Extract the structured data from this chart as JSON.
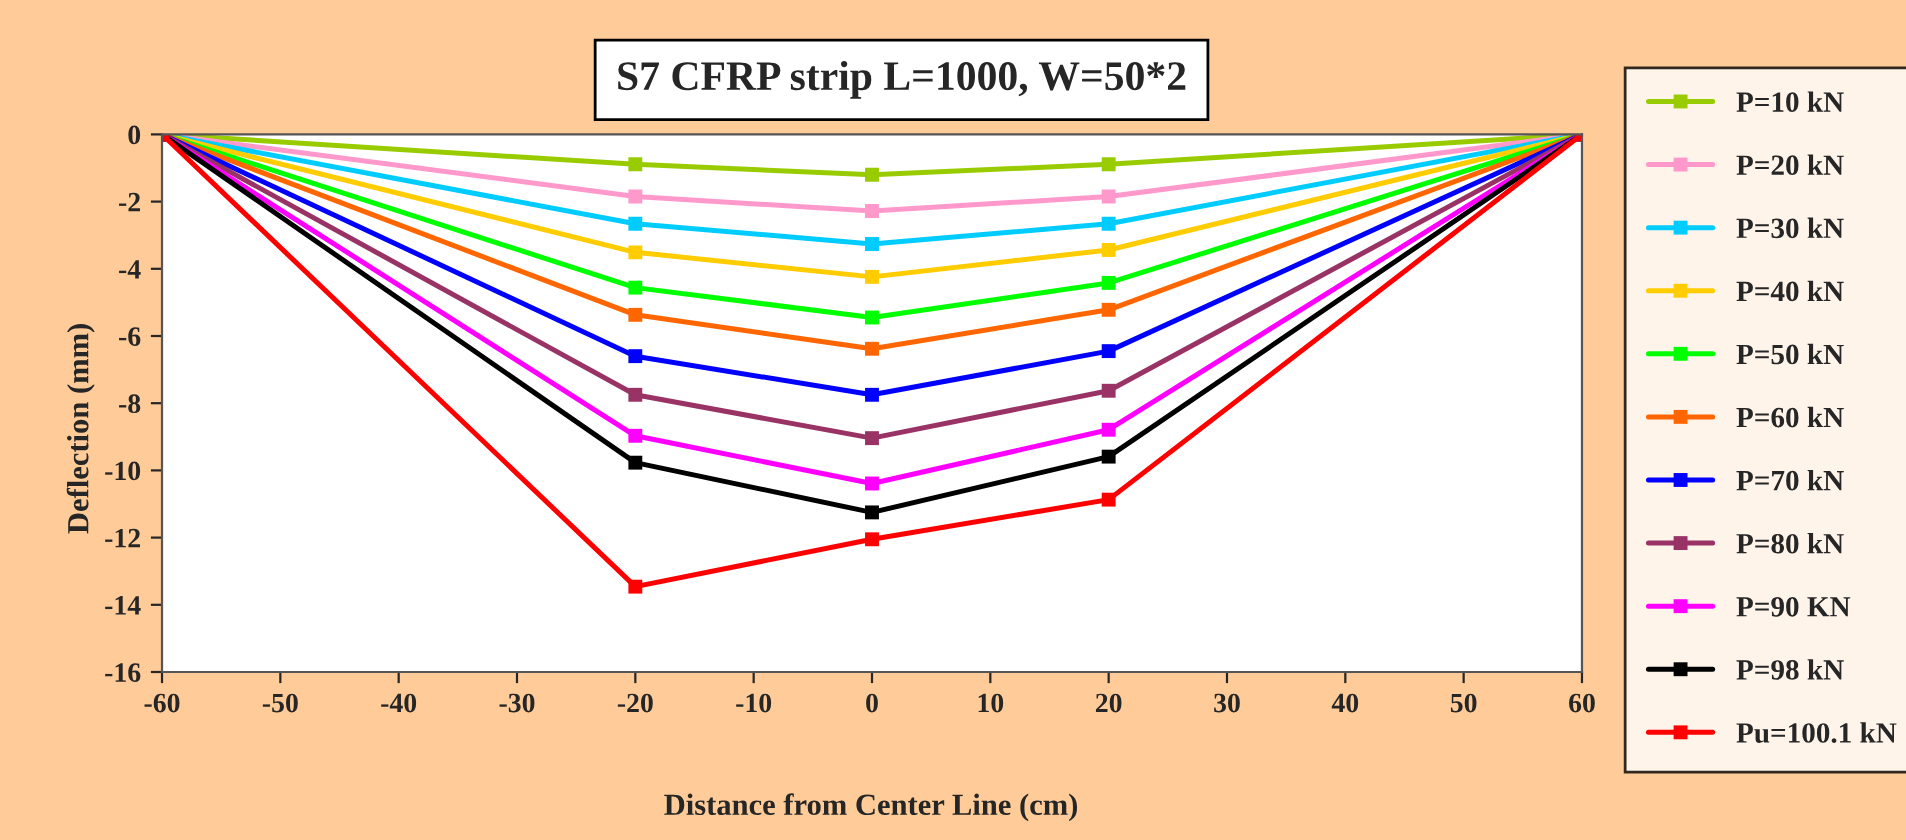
{
  "chart_data": {
    "type": "line",
    "title": "S7 CFRP strip L=1000, W=50*2",
    "xlabel": "Distance from Center Line (cm)",
    "ylabel": "Deflection (mm)",
    "x": [
      -60,
      -20,
      0,
      20,
      60
    ],
    "series": [
      {
        "name": "P=10 kN",
        "color": "#99cc00",
        "values": [
          0,
          -0.89,
          -1.2,
          -0.89,
          0
        ]
      },
      {
        "name": "P=20 kN",
        "color": "#ff99cc",
        "values": [
          0,
          -1.85,
          -2.28,
          -1.85,
          0
        ]
      },
      {
        "name": "P=30 kN",
        "color": "#00ccff",
        "values": [
          0,
          -2.66,
          -3.26,
          -2.66,
          0
        ]
      },
      {
        "name": "P=40 kN",
        "color": "#ffcc00",
        "values": [
          0,
          -3.51,
          -4.24,
          -3.44,
          0
        ]
      },
      {
        "name": "P=50 kN",
        "color": "#00ff00",
        "values": [
          0,
          -4.56,
          -5.45,
          -4.42,
          0
        ]
      },
      {
        "name": "P=60 kN",
        "color": "#ff6600",
        "values": [
          0,
          -5.37,
          -6.38,
          -5.22,
          0
        ]
      },
      {
        "name": "P=70 kN",
        "color": "#0000ff",
        "values": [
          0,
          -6.6,
          -7.75,
          -6.45,
          0
        ]
      },
      {
        "name": "P=80 kN",
        "color": "#993366",
        "values": [
          0,
          -7.75,
          -9.04,
          -7.63,
          0
        ]
      },
      {
        "name": "P=90 KN",
        "color": "#ff00ff",
        "values": [
          0,
          -8.97,
          -10.39,
          -8.79,
          0
        ]
      },
      {
        "name": "P=98 kN",
        "color": "#000000",
        "values": [
          0,
          -9.77,
          -11.25,
          -9.59,
          0
        ]
      },
      {
        "name": "Pu=100.1 kN",
        "color": "#ff0000",
        "values": [
          0,
          -13.46,
          -12.05,
          -10.87,
          0
        ]
      }
    ],
    "xlim": [
      -60,
      60
    ],
    "xticks": [
      -60,
      -50,
      -40,
      -30,
      -20,
      -10,
      0,
      10,
      20,
      30,
      40,
      50,
      60
    ],
    "ylim": [
      -16,
      0
    ],
    "yticks": [
      -16,
      -14,
      -12,
      -10,
      -8,
      -6,
      -4,
      -2,
      0
    ],
    "marker": "square",
    "line_style": "solid",
    "grid": false,
    "legend": "right"
  }
}
